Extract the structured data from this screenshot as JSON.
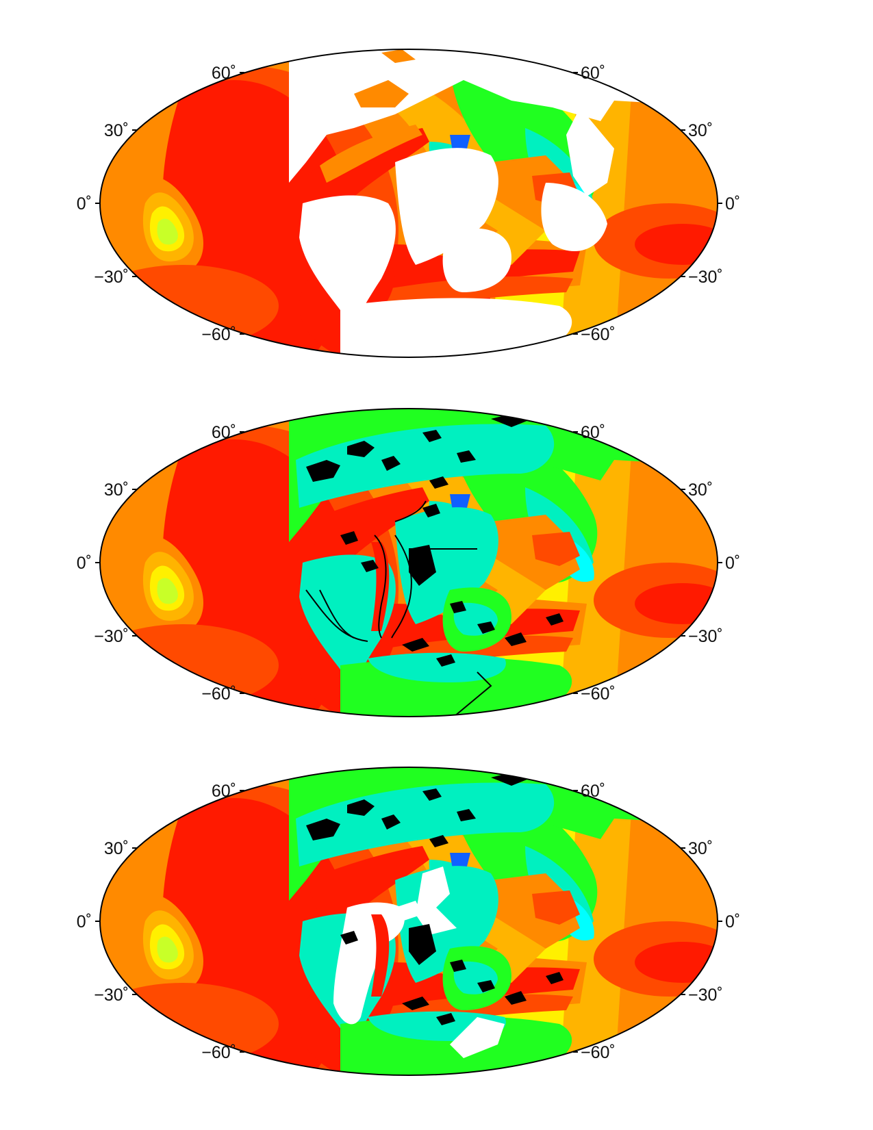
{
  "latitude_labels": {
    "n60": "60˚",
    "n30": "30˚",
    "eq": "0˚",
    "s30": "−30˚",
    "s60": "−60˚"
  },
  "palette": {
    "red": "#ff1a00",
    "red_orange": "#ff4a00",
    "orange": "#ff8a00",
    "amber": "#ffb400",
    "yellow": "#fff000",
    "yellow_green": "#c8ff28",
    "green": "#20ff20",
    "cyan_green": "#00f0c0",
    "cyan": "#00ffff",
    "blue": "#1060ff",
    "land": "#ffffff",
    "black_patch": "#000000",
    "outline": "#000000"
  },
  "maps": [
    {
      "name": "map-1",
      "fill_mode": "white-continents"
    },
    {
      "name": "map-2",
      "fill_mode": "reconstructed-with-outlines"
    },
    {
      "name": "map-3",
      "fill_mode": "reconstructed-with-gaps"
    }
  ]
}
